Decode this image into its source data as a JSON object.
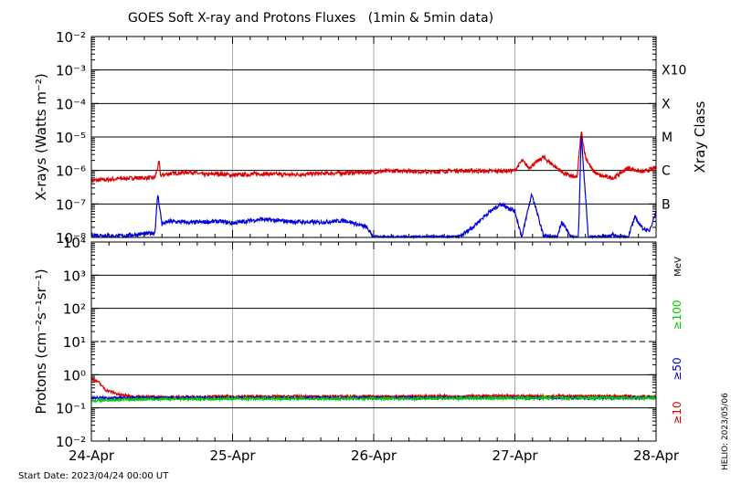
{
  "title": "GOES Soft X-ray and Protons Fluxes   (1min & 5min data)",
  "start_date_label": "Start Date: 2023/04/24 00:00 UT",
  "helio_stamp": "HELIO: 2023/05/06",
  "colors": {
    "xray_long": "#dd0000",
    "xray_short": "#0000dd",
    "p10": "#dd0000",
    "p50": "#0000dd",
    "p100": "#00cc00",
    "grid_day": "#aaaaaa",
    "grid_decade": "#000000"
  },
  "chart_data": [
    {
      "type": "line",
      "title": "",
      "ylabel": "X-rays (Watts m⁻²)",
      "yscale": "log",
      "ylim": [
        "1e-8",
        "1e-2"
      ],
      "ytick_labels": [
        "10⁻⁸",
        "10⁻⁷",
        "10⁻⁶",
        "10⁻⁵",
        "10⁻⁴",
        "10⁻³",
        "10⁻²"
      ],
      "right_axis_label": "Xray Class",
      "class_labels": [
        {
          "label": "B",
          "level": "1e-7"
        },
        {
          "label": "C",
          "level": "1e-6"
        },
        {
          "label": "M",
          "level": "1e-5"
        },
        {
          "label": "X",
          "level": "1e-4"
        },
        {
          "label": "X10",
          "level": "1e-3"
        }
      ],
      "grid": true,
      "x_day_range": [
        0,
        4
      ],
      "series": [
        {
          "key": "long",
          "x_days": [
            0,
            0.3,
            0.45,
            0.48,
            0.49,
            0.55,
            0.7,
            0.8,
            0.9,
            1.0,
            1.2,
            1.4,
            1.6,
            1.8,
            2.0,
            2.2,
            2.4,
            2.6,
            2.8,
            3.0,
            3.05,
            3.1,
            3.2,
            3.35,
            3.44,
            3.47,
            3.5,
            3.55,
            3.6,
            3.7,
            3.8,
            3.9,
            4.0
          ],
          "y": [
            "5e-7",
            "6e-7",
            "6e-7",
            "1.8e-6",
            "7e-7",
            "8e-7",
            "9e-7",
            "7.5e-7",
            "8e-7",
            "7.2e-7",
            "8e-7",
            "7.5e-7",
            "8e-7",
            "8.5e-7",
            "9e-7",
            "1e-6",
            "9e-7",
            "1e-6",
            "9.5e-7",
            "1e-6",
            "2e-6",
            "1.2e-6",
            "2.5e-6",
            "8e-7",
            "6e-7",
            "1.5e-5",
            "2.5e-6",
            "1e-6",
            "7e-7",
            "6e-7",
            "1.2e-6",
            "9e-7",
            "1.2e-6"
          ]
        },
        {
          "key": "short",
          "x_days": [
            0,
            0.2,
            0.4,
            0.45,
            0.47,
            0.5,
            0.55,
            0.7,
            0.9,
            1.0,
            1.2,
            1.4,
            1.6,
            1.8,
            1.95,
            2.0,
            2.1,
            2.3,
            2.5,
            2.6,
            2.7,
            2.8,
            2.9,
            2.95,
            3.0,
            3.05,
            3.08,
            3.12,
            3.2,
            3.25,
            3.3,
            3.33,
            3.4,
            3.45,
            3.47,
            3.52,
            3.6,
            3.7,
            3.75,
            3.8,
            3.85,
            3.9,
            3.95,
            4.0
          ],
          "y": [
            "1.2e-8",
            "1.1e-8",
            "1.3e-8",
            "1.4e-8",
            "2e-7",
            "2.5e-8",
            "3e-8",
            "2.8e-8",
            "3e-8",
            "2.7e-8",
            "3.5e-8",
            "3e-8",
            "2.8e-8",
            "3.2e-8",
            "2e-8",
            "1e-8",
            "1e-8",
            "1e-8",
            "1e-8",
            "1e-8",
            "2e-8",
            "5e-8",
            "1e-7",
            "8e-8",
            "6e-8",
            "1e-8",
            "4e-8",
            "2e-7",
            "1.2e-8",
            "1e-8",
            "1e-8",
            "3e-8",
            "1e-8",
            "1e-8",
            "1.2e-5",
            "1e-8",
            "1e-8",
            "1.2e-8",
            "1e-8",
            "1e-8",
            "4e-8",
            "2e-8",
            "1.5e-8",
            "6e-8"
          ]
        }
      ]
    },
    {
      "type": "line",
      "title": "",
      "ylabel": "Protons (cm⁻²s⁻¹sr⁻¹)",
      "yscale": "log",
      "ylim": [
        "1e-2",
        "1e4"
      ],
      "ytick_labels": [
        "10⁻²",
        "10⁻¹",
        "10⁰",
        "10¹",
        "10²",
        "10³",
        "10⁴"
      ],
      "threshold_line": {
        "level": "10",
        "style": "dashed"
      },
      "energy_unit_label": "MeV",
      "grid": true,
      "xticks": [
        "24-Apr",
        "25-Apr",
        "26-Apr",
        "27-Apr",
        "28-Apr"
      ],
      "x_day_range": [
        0,
        4
      ],
      "series": [
        {
          "key": "p10",
          "name": "≥10",
          "x_days": [
            0,
            0.05,
            0.1,
            0.2,
            0.3,
            0.5,
            1.0,
            2.0,
            3.0,
            4.0
          ],
          "y": [
            "0.8",
            "0.6",
            "0.35",
            "0.25",
            "0.22",
            "0.21",
            "0.22",
            "0.22",
            "0.23",
            "0.22"
          ]
        },
        {
          "key": "p50",
          "name": "≥50",
          "x_days": [
            0,
            1.0,
            2.0,
            3.0,
            4.0
          ],
          "y": [
            "0.2",
            "0.2",
            "0.2",
            "0.2",
            "0.2"
          ]
        },
        {
          "key": "p100",
          "name": "≥100",
          "x_days": [
            0,
            0.1,
            0.3,
            1.0,
            2.0,
            3.0,
            4.0
          ],
          "y": [
            "0.16",
            "0.17",
            "0.18",
            "0.19",
            "0.19",
            "0.2",
            "0.2"
          ]
        }
      ]
    }
  ]
}
